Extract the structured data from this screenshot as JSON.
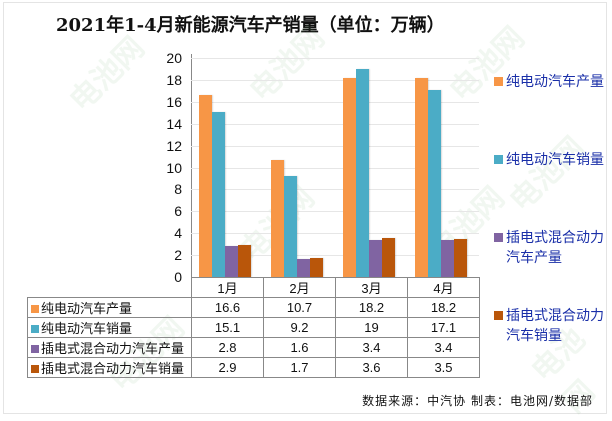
{
  "title": "2021年1-4月新能源汽车产销量（单位：万辆）",
  "colors": {
    "bev_production": "#f79646",
    "bev_sales": "#4bacc6",
    "phev_production": "#8064a2",
    "phev_sales": "#b9560a"
  },
  "y_axis": {
    "ticks": [
      "0",
      "2",
      "4",
      "6",
      "8",
      "10",
      "12",
      "14",
      "16",
      "18",
      "20"
    ]
  },
  "table": {
    "header": [
      "1月",
      "2月",
      "3月",
      "4月"
    ],
    "rows": [
      {
        "label": "纯电动汽车产量",
        "values": [
          "16.6",
          "10.7",
          "18.2",
          "18.2"
        ]
      },
      {
        "label": "纯电动汽车销量",
        "values": [
          "15.1",
          "9.2",
          "19",
          "17.1"
        ]
      },
      {
        "label": "插电式混合动力汽车产量",
        "values": [
          "2.8",
          "1.6",
          "3.4",
          "3.4"
        ]
      },
      {
        "label": "插电式混合动力汽车销量",
        "values": [
          "2.9",
          "1.7",
          "3.6",
          "3.5"
        ]
      }
    ]
  },
  "legend": [
    {
      "label": "纯电动汽车产量"
    },
    {
      "label": "纯电动汽车销量"
    },
    {
      "label": "插电式混合动力汽车产量"
    },
    {
      "label": "插电式混合动力汽车销量"
    }
  ],
  "source": "数据来源：中汽协  制表：电池网/数据部",
  "watermark": "电池网",
  "chart_data": {
    "type": "bar",
    "title": "2021年1-4月新能源汽车产销量（单位：万辆）",
    "xlabel": "",
    "ylabel": "万辆",
    "categories": [
      "1月",
      "2月",
      "3月",
      "4月"
    ],
    "series": [
      {
        "name": "纯电动汽车产量",
        "color": "#f79646",
        "values": [
          16.6,
          10.7,
          18.2,
          18.2
        ]
      },
      {
        "name": "纯电动汽车销量",
        "color": "#4bacc6",
        "values": [
          15.1,
          9.2,
          19,
          17.1
        ]
      },
      {
        "name": "插电式混合动力汽车产量",
        "color": "#8064a2",
        "values": [
          2.8,
          1.6,
          3.4,
          3.4
        ]
      },
      {
        "name": "插电式混合动力汽车销量",
        "color": "#b9560a",
        "values": [
          2.9,
          1.7,
          3.6,
          3.5
        ]
      }
    ],
    "ylim": [
      0,
      20
    ],
    "ytick_step": 2,
    "grid": true,
    "legend_position": "right",
    "data_table": true,
    "source": "数据来源：中汽协  制表：电池网/数据部"
  }
}
